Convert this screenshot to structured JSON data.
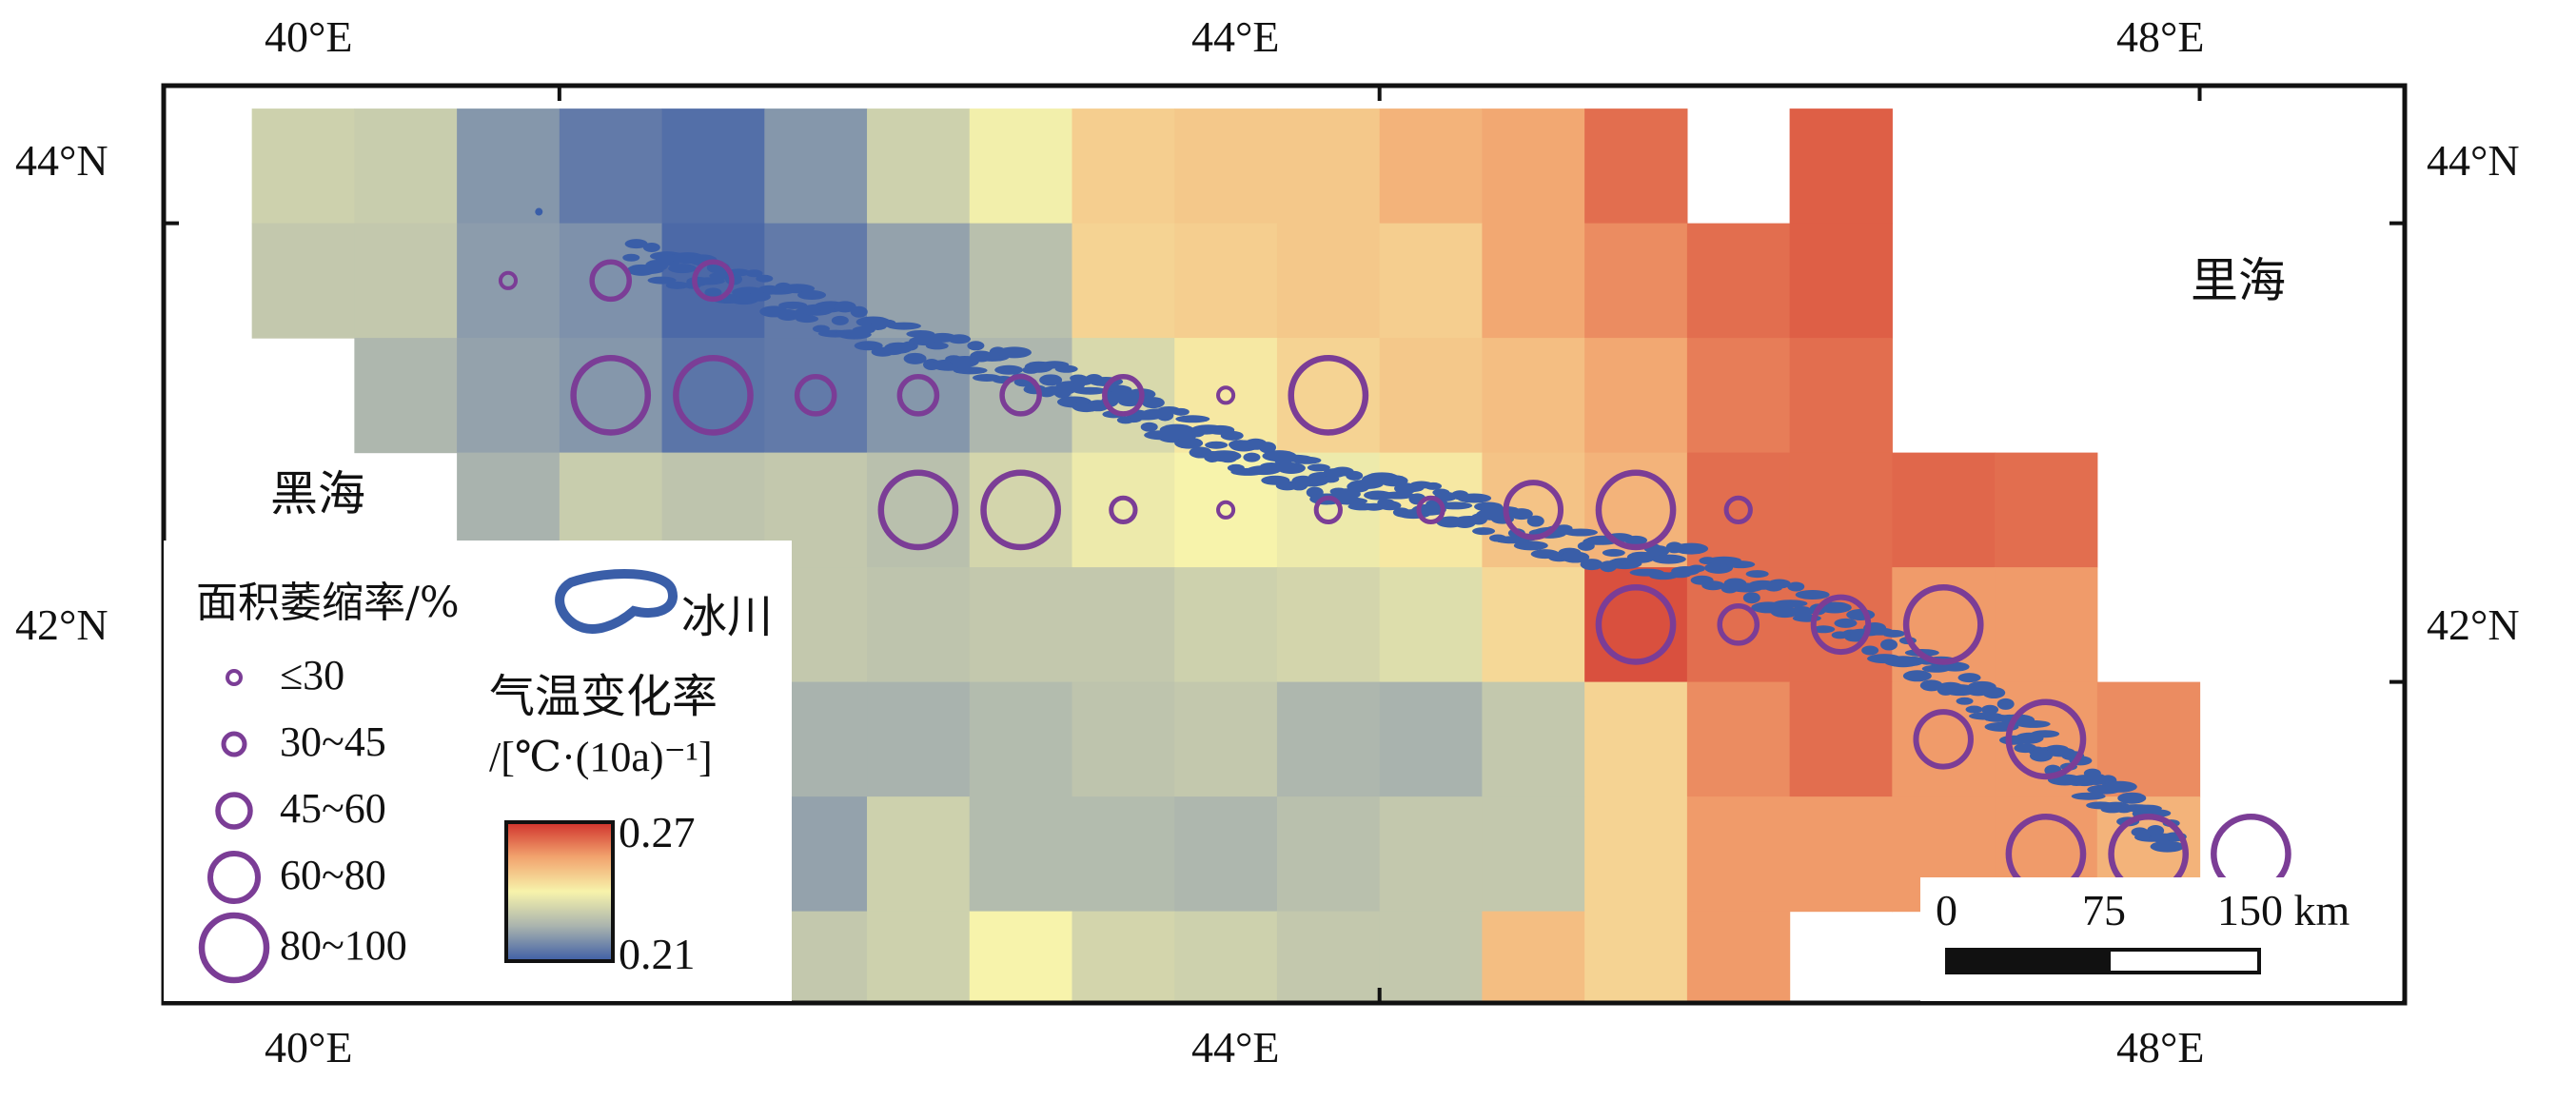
{
  "map": {
    "lon_ticks": [
      {
        "value": 40,
        "label": "40°E"
      },
      {
        "value": 44,
        "label": "44°E"
      },
      {
        "value": 48,
        "label": "48°E"
      }
    ],
    "lat_ticks": [
      {
        "value": 44,
        "label": "44°N"
      },
      {
        "value": 42,
        "label": "42°N"
      }
    ],
    "bounds": {
      "lon_min": 38.07,
      "lon_max": 49.0,
      "lat_min": 40.6,
      "lat_max": 44.6
    },
    "regions": {
      "black_sea": "黑海",
      "caspian_sea": "里海"
    },
    "colors": {
      "circle": "#7b3d96",
      "glacier": "#3a5ea8",
      "frame": "#111111"
    }
  },
  "temperature_grid": {
    "rows": [
      {
        "lat": 44.25,
        "values": [
          null,
          0.232,
          0.231,
          0.22,
          0.215,
          0.213,
          0.22,
          0.232,
          0.239,
          0.247,
          0.248,
          0.248,
          0.252,
          0.254,
          0.262,
          null,
          0.264,
          null,
          null
        ]
      },
      {
        "lat": 43.75,
        "values": [
          null,
          0.23,
          0.23,
          0.221,
          0.219,
          0.212,
          0.215,
          0.222,
          0.228,
          0.246,
          0.247,
          0.248,
          0.247,
          0.254,
          0.258,
          0.262,
          0.264,
          null,
          null
        ]
      },
      {
        "lat": 43.25,
        "values": [
          null,
          null,
          0.226,
          0.222,
          0.22,
          0.214,
          0.215,
          0.22,
          0.226,
          0.234,
          0.242,
          0.246,
          0.248,
          0.25,
          0.254,
          0.26,
          0.262,
          null,
          null
        ]
      },
      {
        "lat": 42.75,
        "values": [
          null,
          null,
          null,
          0.225,
          0.231,
          0.229,
          0.23,
          0.228,
          0.233,
          0.238,
          0.24,
          0.238,
          0.242,
          0.249,
          0.252,
          0.262,
          0.262,
          0.263,
          0.262
        ]
      },
      {
        "lat": 42.25,
        "values": [
          null,
          null,
          null,
          null,
          null,
          0.223,
          0.23,
          0.229,
          0.23,
          0.23,
          0.232,
          0.233,
          0.235,
          0.245,
          0.266,
          0.262,
          0.262,
          0.256,
          0.256
        ]
      },
      {
        "lat": 41.75,
        "values": [
          null,
          null,
          null,
          null,
          null,
          0.223,
          0.225,
          0.225,
          0.227,
          0.229,
          0.23,
          0.226,
          0.225,
          0.23,
          0.246,
          0.258,
          0.262,
          0.256,
          0.256,
          0.258
        ]
      },
      {
        "lat": 41.25,
        "values": [
          null,
          null,
          null,
          null,
          null,
          0.226,
          0.222,
          0.232,
          0.227,
          0.227,
          0.226,
          0.228,
          0.23,
          0.23,
          0.246,
          0.256,
          0.256,
          0.256,
          0.256,
          0.252
        ]
      },
      {
        "lat": 40.75,
        "values": [
          null,
          null,
          null,
          null,
          null,
          0.23,
          0.23,
          0.232,
          0.24,
          0.233,
          0.232,
          0.23,
          0.23,
          0.25,
          0.246,
          0.256,
          null,
          null,
          null,
          null
        ]
      }
    ]
  },
  "shrinkage_circles": [
    {
      "lon": 39.75,
      "lat": 43.75,
      "class": 0
    },
    {
      "lon": 40.25,
      "lat": 43.75,
      "class": 2
    },
    {
      "lon": 40.75,
      "lat": 43.75,
      "class": 2
    },
    {
      "lon": 40.25,
      "lat": 43.25,
      "class": 4
    },
    {
      "lon": 40.75,
      "lat": 43.25,
      "class": 4
    },
    {
      "lon": 41.25,
      "lat": 43.25,
      "class": 2
    },
    {
      "lon": 41.75,
      "lat": 43.25,
      "class": 2
    },
    {
      "lon": 42.25,
      "lat": 43.25,
      "class": 2
    },
    {
      "lon": 42.75,
      "lat": 43.25,
      "class": 2
    },
    {
      "lon": 43.25,
      "lat": 43.25,
      "class": 0
    },
    {
      "lon": 43.75,
      "lat": 43.25,
      "class": 4
    },
    {
      "lon": 41.75,
      "lat": 42.75,
      "class": 4
    },
    {
      "lon": 42.25,
      "lat": 42.75,
      "class": 4
    },
    {
      "lon": 42.75,
      "lat": 42.75,
      "class": 1
    },
    {
      "lon": 43.25,
      "lat": 42.75,
      "class": 0
    },
    {
      "lon": 43.75,
      "lat": 42.75,
      "class": 1
    },
    {
      "lon": 44.25,
      "lat": 42.75,
      "class": 1
    },
    {
      "lon": 44.75,
      "lat": 42.75,
      "class": 3
    },
    {
      "lon": 45.25,
      "lat": 42.75,
      "class": 4
    },
    {
      "lon": 45.75,
      "lat": 42.75,
      "class": 1
    },
    {
      "lon": 45.25,
      "lat": 42.25,
      "class": 4
    },
    {
      "lon": 45.75,
      "lat": 42.25,
      "class": 2
    },
    {
      "lon": 46.25,
      "lat": 42.25,
      "class": 3
    },
    {
      "lon": 46.75,
      "lat": 42.25,
      "class": 4
    },
    {
      "lon": 46.75,
      "lat": 41.75,
      "class": 3
    },
    {
      "lon": 47.25,
      "lat": 41.75,
      "class": 4
    },
    {
      "lon": 47.25,
      "lat": 41.25,
      "class": 4
    },
    {
      "lon": 47.75,
      "lat": 41.25,
      "class": 4
    },
    {
      "lon": 48.25,
      "lat": 41.25,
      "class": 4
    }
  ],
  "legend": {
    "title": "面积萎缩率/%",
    "classes": [
      "≤30",
      "30~45",
      "45~60",
      "60~80",
      "80~100"
    ],
    "glacier_label": "冰川",
    "colorbar_title_line1": "气温变化率",
    "colorbar_title_line2": "/[℃·(10a)⁻¹]",
    "colorbar_max": "0.27",
    "colorbar_min": "0.21",
    "colorbar_max_value": 0.27,
    "colorbar_min_value": 0.21
  },
  "scale_bar": {
    "tick_labels": [
      "0",
      "75",
      "150 km"
    ]
  }
}
